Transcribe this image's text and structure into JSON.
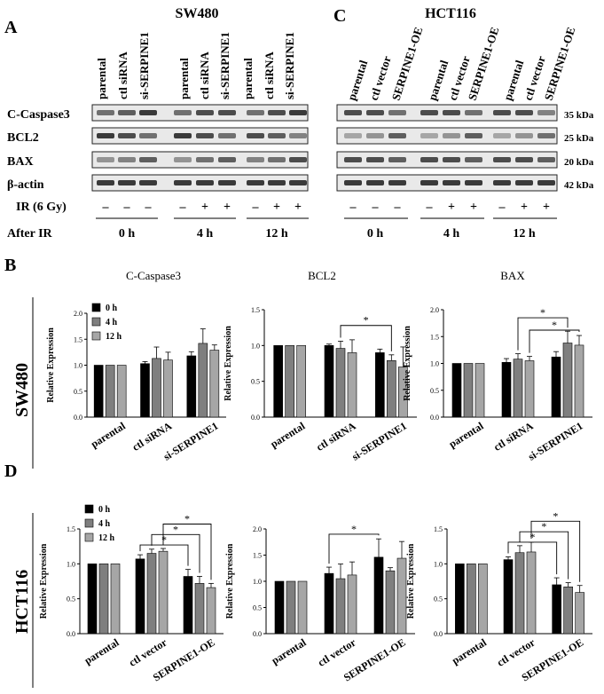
{
  "panels": {
    "A": "A",
    "B": "B",
    "C": "C",
    "D": "D"
  },
  "blots": [
    {
      "title": "SW480",
      "lanes": [
        "parental",
        "ctl siRNA",
        "si-SERPINE1",
        "parental",
        "ctl siRNA",
        "si-SERPINE1",
        "parental",
        "ctl siRNA",
        "si-SERPINE1"
      ],
      "rows": [
        "C-Caspase3",
        "BCL2",
        "BAX",
        "β-actin"
      ],
      "ir_label": "IR (6 Gy)",
      "after_label": "After IR",
      "ir_marks": [
        "–",
        "–",
        "–",
        "–",
        "+",
        "+",
        "–",
        "+",
        "+"
      ],
      "timepoints": [
        "0 h",
        "4 h",
        "12 h"
      ]
    },
    {
      "title": "HCT116",
      "lanes": [
        "parental",
        "ctl vector",
        "SERPINE1-OE",
        "parental",
        "ctl vector",
        "SERPINE1-OE",
        "parental",
        "ctl vector",
        "SERPINE1-OE"
      ],
      "kda": [
        "35 kDa",
        "25 kDa",
        "20 kDa",
        "42 kDa"
      ],
      "ir_marks": [
        "–",
        "–",
        "–",
        "–",
        "+",
        "+",
        "–",
        "+",
        "+"
      ],
      "timepoints": [
        "0 h",
        "4 h",
        "12 h"
      ]
    }
  ],
  "side_labels": {
    "B": "SW480",
    "D": "HCT116"
  },
  "ylabel": "Relative Expression",
  "legend": [
    "0 h",
    "4 h",
    "12 h"
  ],
  "bar_colors": [
    "#000000",
    "#7f7f7f",
    "#a6a6a6"
  ],
  "chart_data": [
    {
      "type": "bar",
      "title": "C-Caspase3",
      "categories": [
        "parental",
        "ctl siRNA",
        "si-SERPINE1"
      ],
      "series": [
        {
          "name": "0 h",
          "values": [
            1.0,
            1.03,
            1.18
          ],
          "errors": [
            0,
            0.04,
            0.08
          ]
        },
        {
          "name": "4 h",
          "values": [
            1.0,
            1.13,
            1.42
          ],
          "errors": [
            0,
            0.22,
            0.28
          ]
        },
        {
          "name": "12 h",
          "values": [
            1.0,
            1.1,
            1.29
          ],
          "errors": [
            0,
            0.15,
            0.1
          ]
        }
      ],
      "ylim": [
        0,
        2.0
      ],
      "yticks": [
        "0.0",
        "0.5",
        "1.0",
        "1.5",
        "2.0"
      ],
      "legend": true,
      "sig": []
    },
    {
      "type": "bar",
      "title": "BCL2",
      "categories": [
        "parental",
        "ctl siRNA",
        "si-SERPINE1"
      ],
      "series": [
        {
          "name": "0 h",
          "values": [
            1.0,
            1.0,
            0.9
          ],
          "errors": [
            0,
            0.02,
            0.05
          ]
        },
        {
          "name": "4 h",
          "values": [
            1.0,
            0.96,
            0.79
          ],
          "errors": [
            0,
            0.1,
            0.08
          ]
        },
        {
          "name": "12 h",
          "values": [
            1.0,
            0.9,
            0.7
          ],
          "errors": [
            0,
            0.18,
            0.28
          ]
        }
      ],
      "ylim": [
        0,
        1.5
      ],
      "yticks": [
        "0.0",
        "0.5",
        "1.0",
        "1.5"
      ],
      "legend": false,
      "sig": [
        {
          "from": [
            1,
            1
          ],
          "to": [
            2,
            1
          ],
          "level": 1.28,
          "label": "*"
        }
      ]
    },
    {
      "type": "bar",
      "title": "BAX",
      "categories": [
        "parental",
        "ctl siRNA",
        "si-SERPINE1"
      ],
      "series": [
        {
          "name": "0 h",
          "values": [
            1.0,
            1.02,
            1.12
          ],
          "errors": [
            0,
            0.07,
            0.1
          ]
        },
        {
          "name": "4 h",
          "values": [
            1.0,
            1.08,
            1.38
          ],
          "errors": [
            0,
            0.1,
            0.22
          ]
        },
        {
          "name": "12 h",
          "values": [
            1.0,
            1.05,
            1.34
          ],
          "errors": [
            0,
            0.08,
            0.18
          ]
        }
      ],
      "ylim": [
        0,
        2.0
      ],
      "yticks": [
        "0.0",
        "0.5",
        "1.0",
        "1.5",
        "2.0"
      ],
      "legend": false,
      "sig": [
        {
          "from": [
            1,
            1
          ],
          "to": [
            2,
            1
          ],
          "level": 1.85,
          "label": "*"
        },
        {
          "from": [
            1,
            2
          ],
          "to": [
            2,
            2
          ],
          "level": 1.62,
          "label": "*"
        }
      ]
    },
    {
      "type": "bar",
      "title": "",
      "categories": [
        "parental",
        "ctl vector",
        "SERPINE1-OE"
      ],
      "series": [
        {
          "name": "0 h",
          "values": [
            1.0,
            1.07,
            0.82
          ],
          "errors": [
            0,
            0.06,
            0.1
          ]
        },
        {
          "name": "4 h",
          "values": [
            1.0,
            1.15,
            0.72
          ],
          "errors": [
            0,
            0.06,
            0.1
          ]
        },
        {
          "name": "12 h",
          "values": [
            1.0,
            1.18,
            0.66
          ],
          "errors": [
            0,
            0.04,
            0.06
          ]
        }
      ],
      "ylim": [
        0,
        1.5
      ],
      "yticks": [
        "0.0",
        "0.5",
        "1.0",
        "1.5"
      ],
      "legend": true,
      "sig": [
        {
          "from": [
            1,
            0
          ],
          "to": [
            2,
            0
          ],
          "level": 1.27,
          "label": "*"
        },
        {
          "from": [
            1,
            1
          ],
          "to": [
            2,
            1
          ],
          "level": 1.42,
          "label": "*"
        },
        {
          "from": [
            1,
            2
          ],
          "to": [
            2,
            2
          ],
          "level": 1.57,
          "label": "*"
        }
      ]
    },
    {
      "type": "bar",
      "title": "",
      "categories": [
        "parental",
        "ctl vector",
        "SERPINE1-OE"
      ],
      "series": [
        {
          "name": "0 h",
          "values": [
            1.0,
            1.15,
            1.46
          ],
          "errors": [
            0,
            0.12,
            0.35
          ]
        },
        {
          "name": "4 h",
          "values": [
            1.0,
            1.05,
            1.2
          ],
          "errors": [
            0,
            0.28,
            0.06
          ]
        },
        {
          "name": "12 h",
          "values": [
            1.0,
            1.12,
            1.44
          ],
          "errors": [
            0,
            0.25,
            0.32
          ]
        }
      ],
      "ylim": [
        0,
        2.0
      ],
      "yticks": [
        "0.0",
        "0.5",
        "1.0",
        "1.5",
        "2.0"
      ],
      "legend": false,
      "sig": [
        {
          "from": [
            1,
            0
          ],
          "to": [
            2,
            0
          ],
          "level": 1.9,
          "label": "*"
        }
      ]
    },
    {
      "type": "bar",
      "title": "",
      "categories": [
        "parental",
        "ctl vector",
        "SERPINE1-OE"
      ],
      "series": [
        {
          "name": "0 h",
          "values": [
            1.0,
            1.06,
            0.7
          ],
          "errors": [
            0,
            0.04,
            0.1
          ]
        },
        {
          "name": "4 h",
          "values": [
            1.0,
            1.16,
            0.67
          ],
          "errors": [
            0,
            0.1,
            0.06
          ]
        },
        {
          "name": "12 h",
          "values": [
            1.0,
            1.17,
            0.59
          ],
          "errors": [
            0,
            0.14,
            0.1
          ]
        }
      ],
      "ylim": [
        0,
        1.5
      ],
      "yticks": [
        "0.0",
        "0.5",
        "1.0",
        "1.5"
      ],
      "legend": false,
      "sig": [
        {
          "from": [
            1,
            0
          ],
          "to": [
            2,
            0
          ],
          "level": 1.31,
          "label": "*"
        },
        {
          "from": [
            1,
            1
          ],
          "to": [
            2,
            1
          ],
          "level": 1.46,
          "label": "*"
        },
        {
          "from": [
            1,
            2
          ],
          "to": [
            2,
            2
          ],
          "level": 1.61,
          "label": "*"
        }
      ]
    }
  ]
}
